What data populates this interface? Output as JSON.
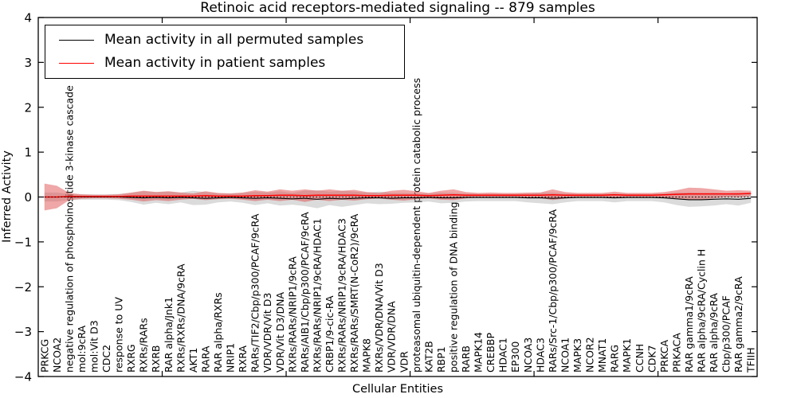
{
  "title": "Retinoic acid receptors-mediated signaling -- 879 samples",
  "legend": {
    "entries": [
      {
        "label": "Mean activity in all permuted samples",
        "color": "#000000"
      },
      {
        "label": "Mean activity in patient samples",
        "color": "#ff0000"
      }
    ]
  },
  "colors": {
    "permuted_line": "#000000",
    "permuted_band": "#999999",
    "patient_line": "#ff0000",
    "patient_band": "#e05050",
    "axis": "#000000",
    "background": "#ffffff"
  },
  "chart_data": {
    "type": "line",
    "title": "Retinoic acid receptors-mediated signaling -- 879 samples",
    "xlabel": "Cellular Entities",
    "ylabel": "Inferred Activity",
    "ylim": [
      -4,
      4
    ],
    "yticks": [
      -4,
      -3,
      -2,
      -1,
      0,
      1,
      2,
      3,
      4
    ],
    "xtick_units": [
      10,
      20,
      30,
      40,
      50
    ],
    "grid": false,
    "legend_position": "upper left",
    "zero_line": {
      "y": 0,
      "style": "dotted",
      "color": "#000000"
    },
    "categories": [
      "PRKCG",
      "NCOA2",
      "negative regulation of phosphoinositide 3-kinase cascade",
      "mol:9cRA",
      "mol:Vit D3",
      "CDC2",
      "response to UV",
      "RXRG",
      "RXRs/RARs",
      "RXRB",
      "RAR alpha/Jnk1",
      "RXRs/RXRs/DNA/9cRA",
      "AKT1",
      "RARA",
      "RAR alpha/RXRs",
      "NRIP1",
      "RXRA",
      "RARs/TIF2/Cbp/p300/PCAF/9cRA",
      "VDR/VDR/Vit D3",
      "VDR/Vit D3/DNA",
      "RXRs/RARs/NRIP1/9cRA",
      "RARs/AIB1/Cbp/p300/PCAF/9cRA",
      "RXRs/RARs/NRIP1/9cRA/HDAC1",
      "CRBP1/9-cic-RA",
      "RXRs/RARs/NRIP1/9cRA/HDAC3",
      "RXRs/RARs/SMRT(N-CoR2)/9cRA",
      "MAPK8",
      "RXRs/VDR/DNA/Vit D3",
      "VDR/VDR/DNA",
      "VDR",
      "proteasomal ubiquitin-dependent protein catabolic process",
      "KAT2B",
      "RBP1",
      "positive regulation of DNA binding",
      "RARB",
      "MAPK14",
      "CREBBP",
      "HDAC1",
      "EP300",
      "NCOA3",
      "HDAC3",
      "RARs/Src-1/Cbp/p300/PCAF/9cRA",
      "NCOA1",
      "MAPK3",
      "NCOR2",
      "MNAT1",
      "RARG",
      "MAPK1",
      "CCNH",
      "CDK7",
      "PRKCA",
      "PRKACA",
      "RAR gamma1/9cRA",
      "RAR alpha/9cRA/Cyclin H",
      "RAR alpha/9cRA",
      "Cbp/p300/PCAF",
      "RAR gamma2/9cRA",
      "TFIIH"
    ],
    "series": [
      {
        "name": "Mean activity in all permuted samples",
        "color": "#000000",
        "values": [
          0.0,
          0.0,
          0.0,
          0.0,
          0.0,
          0.0,
          0.0,
          -0.01,
          -0.02,
          -0.01,
          -0.02,
          -0.01,
          -0.02,
          -0.03,
          -0.02,
          -0.01,
          -0.02,
          -0.03,
          -0.02,
          -0.03,
          -0.04,
          -0.03,
          -0.05,
          -0.03,
          -0.04,
          -0.03,
          -0.02,
          -0.02,
          -0.03,
          -0.02,
          -0.02,
          -0.01,
          -0.02,
          -0.02,
          -0.01,
          -0.01,
          -0.01,
          -0.01,
          -0.01,
          -0.02,
          -0.02,
          -0.03,
          -0.02,
          -0.01,
          -0.01,
          -0.01,
          -0.02,
          -0.01,
          -0.01,
          -0.01,
          -0.02,
          -0.04,
          -0.06,
          -0.06,
          -0.05,
          -0.04,
          -0.05,
          -0.03
        ],
        "band_half_width": [
          0.1,
          0.1,
          0.07,
          0.06,
          0.06,
          0.06,
          0.07,
          0.1,
          0.15,
          0.12,
          0.14,
          0.11,
          0.16,
          0.14,
          0.1,
          0.09,
          0.11,
          0.15,
          0.12,
          0.16,
          0.13,
          0.17,
          0.2,
          0.15,
          0.18,
          0.15,
          0.12,
          0.14,
          0.12,
          0.11,
          0.1,
          0.09,
          0.12,
          0.11,
          0.09,
          0.08,
          0.08,
          0.08,
          0.08,
          0.1,
          0.12,
          0.13,
          0.1,
          0.08,
          0.08,
          0.08,
          0.1,
          0.08,
          0.08,
          0.08,
          0.1,
          0.14,
          0.16,
          0.15,
          0.14,
          0.12,
          0.14,
          0.1
        ]
      },
      {
        "name": "Mean activity in patient samples",
        "color": "#ff0000",
        "values": [
          0.0,
          0.0,
          0.01,
          0.01,
          0.01,
          0.01,
          0.01,
          0.02,
          0.02,
          0.02,
          0.02,
          0.02,
          0.02,
          0.03,
          0.02,
          0.02,
          0.02,
          0.03,
          0.03,
          0.04,
          0.04,
          0.03,
          0.04,
          0.04,
          0.04,
          0.04,
          0.03,
          0.03,
          0.04,
          0.04,
          0.04,
          0.03,
          0.04,
          0.05,
          0.04,
          0.04,
          0.04,
          0.04,
          0.04,
          0.04,
          0.04,
          0.05,
          0.04,
          0.04,
          0.04,
          0.04,
          0.05,
          0.04,
          0.04,
          0.04,
          0.05,
          0.06,
          0.07,
          0.07,
          0.07,
          0.07,
          0.07,
          0.08
        ],
        "band_half_width": [
          0.3,
          0.25,
          0.08,
          0.05,
          0.04,
          0.04,
          0.05,
          0.08,
          0.12,
          0.09,
          0.11,
          0.08,
          0.06,
          0.1,
          0.07,
          0.06,
          0.08,
          0.12,
          0.09,
          0.13,
          0.1,
          0.14,
          0.1,
          0.13,
          0.1,
          0.12,
          0.08,
          0.06,
          0.1,
          0.12,
          0.09,
          0.06,
          0.1,
          0.12,
          0.07,
          0.05,
          0.06,
          0.05,
          0.05,
          0.06,
          0.06,
          0.12,
          0.07,
          0.05,
          0.05,
          0.05,
          0.07,
          0.05,
          0.05,
          0.05,
          0.06,
          0.09,
          0.14,
          0.13,
          0.1,
          0.07,
          0.08,
          0.06
        ]
      }
    ]
  }
}
